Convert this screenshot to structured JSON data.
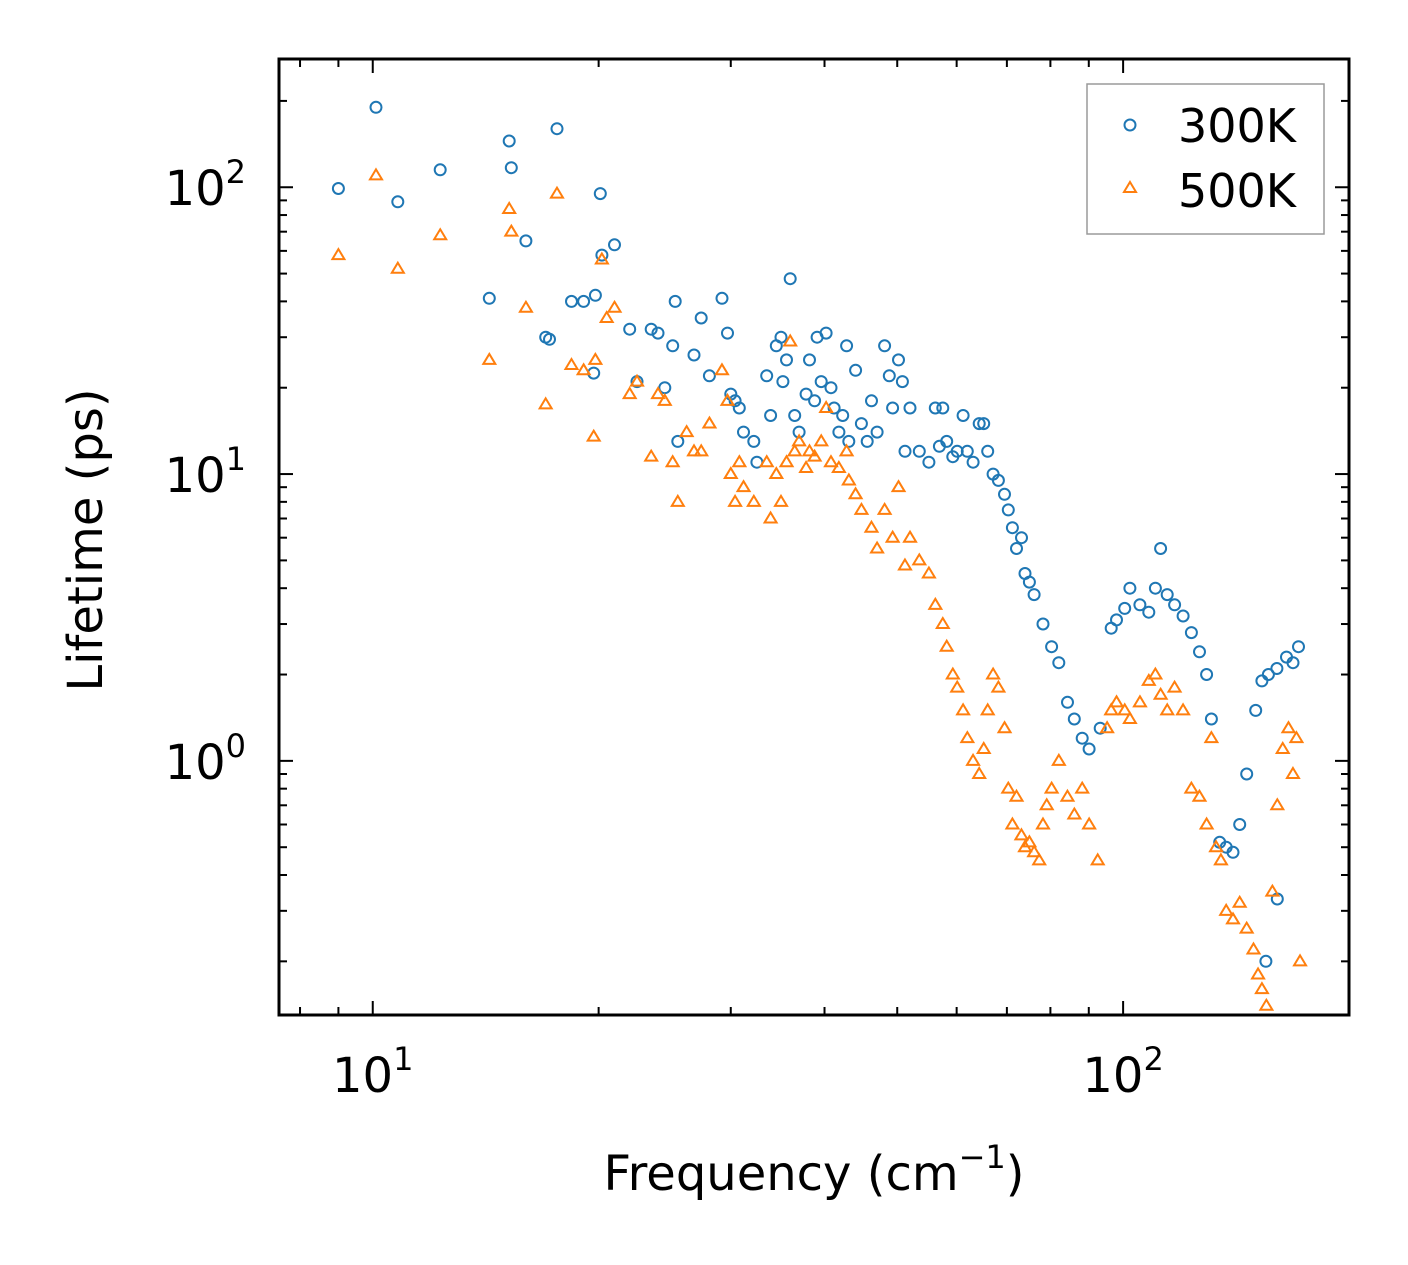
{
  "chart_data": {
    "type": "scatter",
    "title": "",
    "xlabel": "Frequency (cm",
    "xlabel_sup": "−1",
    "xlabel_end": ")",
    "ylabel": "Lifetime (ps)",
    "xscale": "log",
    "yscale": "log",
    "xlim": [
      7.5,
      200
    ],
    "ylim": [
      0.13,
      280
    ],
    "x_ticks": [
      {
        "value": 10,
        "base": "10",
        "exp": "1"
      },
      {
        "value": 100,
        "base": "10",
        "exp": "2"
      }
    ],
    "y_ticks": [
      {
        "value": 1,
        "base": "10",
        "exp": "0"
      },
      {
        "value": 10,
        "base": "10",
        "exp": "1"
      },
      {
        "value": 100,
        "base": "10",
        "exp": "2"
      }
    ],
    "legend_position": "top-right",
    "series": [
      {
        "name": "300K",
        "marker": "circle",
        "color": "#1f77b4",
        "points": [
          [
            9.0,
            99
          ],
          [
            10.1,
            190
          ],
          [
            10.8,
            89
          ],
          [
            12.3,
            115
          ],
          [
            14.3,
            41
          ],
          [
            15.2,
            145
          ],
          [
            15.3,
            117
          ],
          [
            16.0,
            65
          ],
          [
            17.0,
            30
          ],
          [
            17.2,
            29.5
          ],
          [
            17.6,
            160
          ],
          [
            18.4,
            40
          ],
          [
            19.1,
            40
          ],
          [
            19.8,
            42
          ],
          [
            19.7,
            22.5
          ],
          [
            20.2,
            58
          ],
          [
            20.1,
            95
          ],
          [
            21.0,
            63
          ],
          [
            22.0,
            32
          ],
          [
            22.5,
            21
          ],
          [
            23.5,
            32
          ],
          [
            24.0,
            31
          ],
          [
            24.5,
            20
          ],
          [
            25.1,
            28
          ],
          [
            25.3,
            40
          ],
          [
            25.5,
            13
          ],
          [
            26.8,
            26
          ],
          [
            27.4,
            35
          ],
          [
            28.1,
            22
          ],
          [
            29.2,
            41
          ],
          [
            29.7,
            31
          ],
          [
            30.0,
            19
          ],
          [
            30.4,
            18
          ],
          [
            30.8,
            17
          ],
          [
            31.2,
            14
          ],
          [
            32.2,
            13
          ],
          [
            32.5,
            11
          ],
          [
            33.5,
            22
          ],
          [
            33.9,
            16
          ],
          [
            34.5,
            28
          ],
          [
            35.0,
            30
          ],
          [
            35.2,
            21
          ],
          [
            35.6,
            25
          ],
          [
            36.0,
            48
          ],
          [
            36.5,
            16
          ],
          [
            37.0,
            14
          ],
          [
            37.8,
            19
          ],
          [
            38.2,
            25
          ],
          [
            38.8,
            18
          ],
          [
            39.1,
            30
          ],
          [
            39.6,
            21
          ],
          [
            40.2,
            31
          ],
          [
            40.8,
            20
          ],
          [
            41.2,
            17
          ],
          [
            41.8,
            14
          ],
          [
            42.3,
            16
          ],
          [
            42.8,
            28
          ],
          [
            43.1,
            13
          ],
          [
            44.0,
            23
          ],
          [
            44.8,
            15
          ],
          [
            45.6,
            13
          ],
          [
            46.2,
            18
          ],
          [
            47.0,
            14
          ],
          [
            48.1,
            28
          ],
          [
            48.8,
            22
          ],
          [
            49.3,
            17
          ],
          [
            50.2,
            25
          ],
          [
            50.8,
            21
          ],
          [
            51.2,
            12
          ],
          [
            52.0,
            17
          ],
          [
            53.5,
            12
          ],
          [
            55.1,
            11
          ],
          [
            56.2,
            17
          ],
          [
            56.9,
            12.5
          ],
          [
            57.5,
            17
          ],
          [
            58.2,
            13
          ],
          [
            59.3,
            11.5
          ],
          [
            60.1,
            12
          ],
          [
            61.2,
            16
          ],
          [
            62.0,
            12
          ],
          [
            63.1,
            11
          ],
          [
            64.3,
            15
          ],
          [
            65.2,
            15
          ],
          [
            66.0,
            12
          ],
          [
            67.1,
            10
          ],
          [
            68.2,
            9.5
          ],
          [
            69.5,
            8.5
          ],
          [
            70.3,
            7.5
          ],
          [
            71.2,
            6.5
          ],
          [
            72.1,
            5.5
          ],
          [
            73.2,
            6.0
          ],
          [
            74.0,
            4.5
          ],
          [
            75.0,
            4.2
          ],
          [
            76.1,
            3.8
          ],
          [
            78.2,
            3.0
          ],
          [
            80.3,
            2.5
          ],
          [
            82.1,
            2.2
          ],
          [
            84.3,
            1.6
          ],
          [
            86.1,
            1.4
          ],
          [
            88.2,
            1.2
          ],
          [
            90.1,
            1.1
          ],
          [
            93.2,
            1.3
          ],
          [
            96.4,
            2.9
          ],
          [
            98.0,
            3.1
          ],
          [
            100.5,
            3.4
          ],
          [
            102.1,
            4.0
          ],
          [
            105.3,
            3.5
          ],
          [
            108.2,
            3.3
          ],
          [
            110.4,
            4.0
          ],
          [
            112.2,
            5.5
          ],
          [
            114.5,
            3.8
          ],
          [
            117.1,
            3.5
          ],
          [
            120.2,
            3.2
          ],
          [
            123.3,
            2.8
          ],
          [
            126.4,
            2.4
          ],
          [
            129.2,
            2.0
          ],
          [
            131.1,
            1.4
          ],
          [
            134.5,
            0.52
          ],
          [
            137.2,
            0.5
          ],
          [
            140.1,
            0.48
          ],
          [
            143.0,
            0.6
          ],
          [
            146.1,
            0.9
          ],
          [
            150.2,
            1.5
          ],
          [
            153.1,
            1.9
          ],
          [
            156.2,
            2.0
          ],
          [
            160.3,
            2.1
          ],
          [
            165.1,
            2.3
          ],
          [
            168.4,
            2.2
          ],
          [
            171.3,
            2.5
          ],
          [
            160.5,
            0.33
          ],
          [
            155.0,
            0.2
          ]
        ]
      },
      {
        "name": "500K",
        "marker": "triangle",
        "color": "#ff7f0e",
        "points": [
          [
            9.0,
            58
          ],
          [
            10.1,
            110
          ],
          [
            10.8,
            52
          ],
          [
            12.3,
            68
          ],
          [
            14.3,
            25
          ],
          [
            15.2,
            84
          ],
          [
            15.3,
            70
          ],
          [
            16.0,
            38
          ],
          [
            17.0,
            17.5
          ],
          [
            17.6,
            95
          ],
          [
            18.4,
            24
          ],
          [
            19.1,
            23
          ],
          [
            19.8,
            25
          ],
          [
            19.7,
            13.5
          ],
          [
            20.2,
            56
          ],
          [
            20.5,
            35
          ],
          [
            21.0,
            38
          ],
          [
            22.0,
            19
          ],
          [
            22.5,
            21
          ],
          [
            23.5,
            11.5
          ],
          [
            24.0,
            19
          ],
          [
            24.5,
            18
          ],
          [
            25.1,
            11
          ],
          [
            25.5,
            8
          ],
          [
            26.2,
            14
          ],
          [
            26.8,
            12
          ],
          [
            27.4,
            12
          ],
          [
            28.1,
            15
          ],
          [
            29.2,
            23
          ],
          [
            29.7,
            18
          ],
          [
            30.0,
            10
          ],
          [
            30.4,
            8
          ],
          [
            30.8,
            11
          ],
          [
            31.2,
            9
          ],
          [
            32.2,
            8
          ],
          [
            33.5,
            11
          ],
          [
            33.9,
            7
          ],
          [
            34.5,
            10
          ],
          [
            35.0,
            8
          ],
          [
            35.6,
            11
          ],
          [
            36.0,
            29
          ],
          [
            36.5,
            12
          ],
          [
            37.0,
            13
          ],
          [
            37.8,
            10.5
          ],
          [
            38.2,
            12
          ],
          [
            38.8,
            11.5
          ],
          [
            39.6,
            13
          ],
          [
            40.2,
            17
          ],
          [
            40.8,
            11
          ],
          [
            41.8,
            10.5
          ],
          [
            42.8,
            12
          ],
          [
            43.1,
            9.5
          ],
          [
            44.0,
            8.5
          ],
          [
            44.8,
            7.5
          ],
          [
            46.2,
            6.5
          ],
          [
            47.0,
            5.5
          ],
          [
            48.1,
            7.5
          ],
          [
            49.3,
            6.0
          ],
          [
            50.2,
            9
          ],
          [
            51.2,
            4.8
          ],
          [
            52.0,
            6.0
          ],
          [
            53.5,
            5.0
          ],
          [
            55.1,
            4.5
          ],
          [
            56.2,
            3.5
          ],
          [
            57.5,
            3.0
          ],
          [
            58.2,
            2.5
          ],
          [
            59.3,
            2.0
          ],
          [
            60.1,
            1.8
          ],
          [
            61.2,
            1.5
          ],
          [
            62.0,
            1.2
          ],
          [
            63.1,
            1.0
          ],
          [
            64.3,
            0.9
          ],
          [
            65.2,
            1.1
          ],
          [
            66.0,
            1.5
          ],
          [
            67.1,
            2.0
          ],
          [
            68.2,
            1.8
          ],
          [
            69.5,
            1.3
          ],
          [
            70.3,
            0.8
          ],
          [
            71.2,
            0.6
          ],
          [
            72.1,
            0.75
          ],
          [
            73.2,
            0.55
          ],
          [
            74.0,
            0.5
          ],
          [
            75.0,
            0.52
          ],
          [
            76.1,
            0.48
          ],
          [
            77.3,
            0.45
          ],
          [
            78.2,
            0.6
          ],
          [
            79.1,
            0.7
          ],
          [
            80.3,
            0.8
          ],
          [
            82.1,
            1.0
          ],
          [
            84.3,
            0.75
          ],
          [
            86.1,
            0.65
          ],
          [
            88.2,
            0.8
          ],
          [
            90.1,
            0.6
          ],
          [
            92.5,
            0.45
          ],
          [
            95.2,
            1.3
          ],
          [
            96.4,
            1.5
          ],
          [
            98.0,
            1.6
          ],
          [
            100.5,
            1.5
          ],
          [
            102.1,
            1.4
          ],
          [
            105.3,
            1.6
          ],
          [
            108.2,
            1.9
          ],
          [
            110.4,
            2.0
          ],
          [
            112.2,
            1.7
          ],
          [
            114.5,
            1.5
          ],
          [
            117.1,
            1.8
          ],
          [
            120.2,
            1.5
          ],
          [
            123.3,
            0.8
          ],
          [
            126.4,
            0.75
          ],
          [
            129.2,
            0.6
          ],
          [
            131.1,
            1.2
          ],
          [
            133.0,
            0.5
          ],
          [
            135.0,
            0.45
          ],
          [
            137.2,
            0.3
          ],
          [
            140.1,
            0.28
          ],
          [
            143.0,
            0.32
          ],
          [
            146.1,
            0.26
          ],
          [
            149.2,
            0.22
          ],
          [
            151.3,
            0.18
          ],
          [
            153.1,
            0.16
          ],
          [
            155.2,
            0.14
          ],
          [
            158.1,
            0.35
          ],
          [
            160.5,
            0.7
          ],
          [
            163.2,
            1.1
          ],
          [
            166.1,
            1.3
          ],
          [
            168.4,
            0.9
          ],
          [
            170.2,
            1.2
          ],
          [
            172.1,
            0.2
          ]
        ]
      }
    ]
  }
}
